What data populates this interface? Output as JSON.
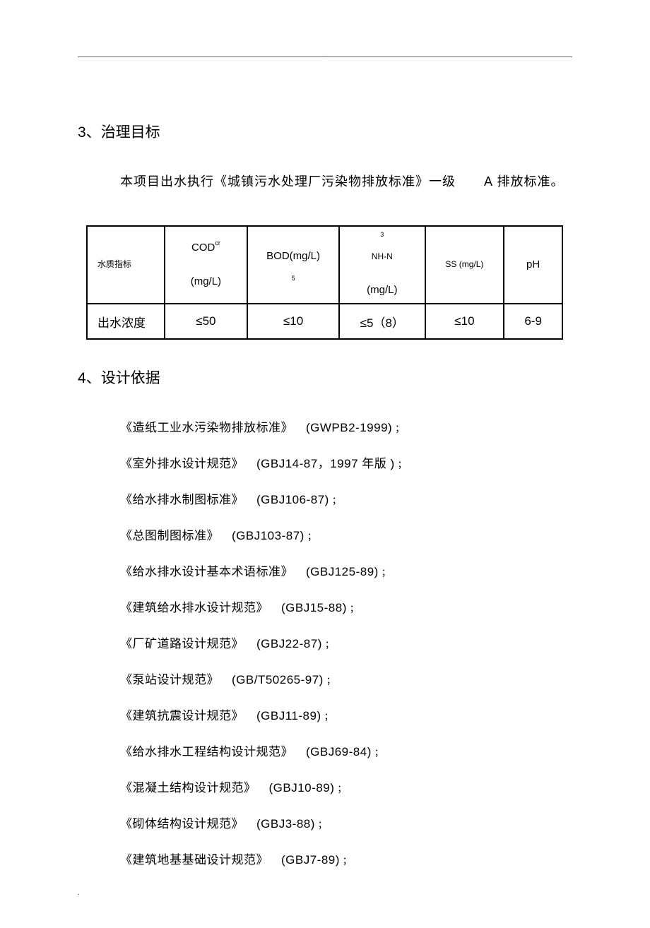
{
  "section3": {
    "heading_num": "3",
    "heading_sep": "、",
    "heading_text": "治理目标",
    "intro_pre": "本项目出水执行《城镇污水处理厂污染物排放标准》一级",
    "intro_code": "A",
    "intro_post": " 排放标准。"
  },
  "table": {
    "col_widths": [
      "110px",
      "118px",
      "130px",
      "122px",
      "112px",
      "83px"
    ],
    "headers": {
      "c0": "水质指标",
      "c1_top": "COD",
      "c1_sup": "cr",
      "c1_unit": "(mg/L)",
      "c2_top": "BOD(mg/L)",
      "c2_sub": "5",
      "c3_top": "NH-N",
      "c3_sup": "3",
      "c3_unit": "(mg/L)",
      "c4": "SS (mg/L)",
      "c5": "pH"
    },
    "row": {
      "label": "出水浓度",
      "c1": "≤50",
      "c2": "≤10",
      "c3": "≤5（8）",
      "c4": "≤10",
      "c5": "6-9"
    }
  },
  "section4": {
    "heading_num": "4",
    "heading_sep": "、",
    "heading_text": "设计依据"
  },
  "refs": [
    {
      "title": "《造纸工业水污染物排放标准》",
      "code": "(GWPB2-1999)",
      "tail": "；"
    },
    {
      "title": "《室外排水设计规范》",
      "code": "(GBJ14-87，1997 年版 )",
      "tail": "；"
    },
    {
      "title": "《给水排水制图标准》",
      "code": "(GBJ106-87)",
      "tail": "；"
    },
    {
      "title": "《总图制图标准》",
      "code": "(GBJ103-87)",
      "tail": "；"
    },
    {
      "title": "《给水排水设计基本术语标准》",
      "code": "(GBJ125-89)",
      "tail": "；"
    },
    {
      "title": "《建筑给水排水设计规范》",
      "code": "(GBJ15-88)",
      "tail": "；"
    },
    {
      "title": "《厂矿道路设计规范》",
      "code": "(GBJ22-87)",
      "tail": "；"
    },
    {
      "title": "《泵站设计规范》",
      "code": "(GB/T50265-97)",
      "tail": "；"
    },
    {
      "title": "《建筑抗震设计规范》",
      "code": "(GBJ11-89)",
      "tail": "；"
    },
    {
      "title": "《给水排水工程结构设计规范》",
      "code": "(GBJ69-84)",
      "tail": "；"
    },
    {
      "title": "《混凝土结构设计规范》",
      "code": "(GBJ10-89)",
      "tail": "；"
    },
    {
      "title": "《砌体结构设计规范》",
      "code": "(GBJ3-88)",
      "tail": "；"
    },
    {
      "title": "《建筑地基基础设计规范》",
      "code": "(GBJ7-89)",
      "tail": "；"
    }
  ],
  "decor": {
    "top_dot": ".",
    "footer_dot": "."
  }
}
